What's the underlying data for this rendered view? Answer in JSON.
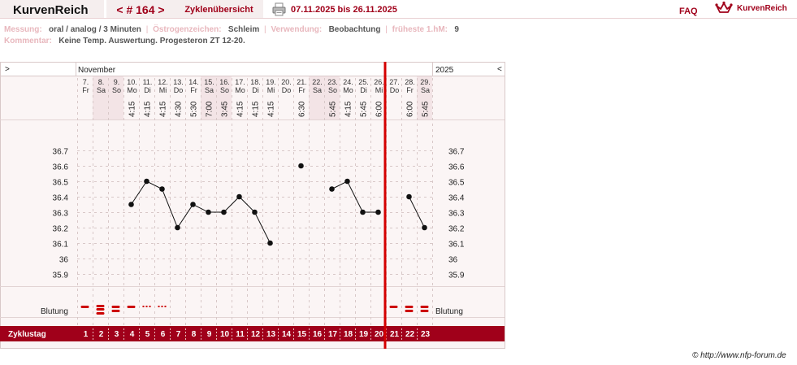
{
  "app": {
    "title": "KurvenReich",
    "cycle_nav": "< # 164 >",
    "overview_label": "Zyklenübersicht",
    "date_range": "07.11.2025 bis 26.11.2025",
    "faq_label": "FAQ",
    "brand_name": "KurvenReich",
    "copyright": "© http://www.nfp-forum.de"
  },
  "info": {
    "measurement_label": "Messung:",
    "measurement_value": "oral / analog / 3 Minuten",
    "estrogen_label": "Östrogenzeichen:",
    "estrogen_value": "Schleim",
    "usage_label": "Verwendung:",
    "usage_value": "Beobachtung",
    "earliest_label": "früheste 1.hM:",
    "earliest_value": "9",
    "comment_label": "Kommentar:",
    "comment_value": "Keine Temp. Auswertung. Progesteron ZT 12-20."
  },
  "chart_header": {
    "prev": ">",
    "next": "<",
    "month": "November",
    "year": "2025",
    "bleeding_label": "Blutung",
    "cycle_label": "Zyklustag"
  },
  "colors": {
    "accent": "#a0001a",
    "marker": "#cc0000",
    "weekend": "#f3e4e6",
    "panel": "#fbf5f5",
    "grid": "#d8c8c8"
  },
  "days": [
    {
      "date": "7.",
      "wd": "Fr",
      "time": "",
      "temp": null,
      "bleeding": "single",
      "cd": "1",
      "weekend": false
    },
    {
      "date": "8.",
      "wd": "Sa",
      "time": "",
      "temp": null,
      "bleeding": "triple",
      "cd": "2",
      "weekend": true
    },
    {
      "date": "9.",
      "wd": "So",
      "time": "",
      "temp": null,
      "bleeding": "double",
      "cd": "3",
      "weekend": true
    },
    {
      "date": "10.",
      "wd": "Mo",
      "time": "4:15",
      "temp": 36.35,
      "bleeding": "single",
      "cd": "4",
      "weekend": false
    },
    {
      "date": "11.",
      "wd": "Di",
      "time": "4:15",
      "temp": 36.5,
      "bleeding": "dots",
      "cd": "5",
      "weekend": false
    },
    {
      "date": "12.",
      "wd": "Mi",
      "time": "4:15",
      "temp": 36.45,
      "bleeding": "dots",
      "cd": "6",
      "weekend": false
    },
    {
      "date": "13.",
      "wd": "Do",
      "time": "4:30",
      "temp": 36.2,
      "bleeding": "",
      "cd": "7",
      "weekend": false
    },
    {
      "date": "14.",
      "wd": "Fr",
      "time": "5:30",
      "temp": 36.35,
      "bleeding": "",
      "cd": "8",
      "weekend": false
    },
    {
      "date": "15.",
      "wd": "Sa",
      "time": "7:00",
      "temp": 36.3,
      "bleeding": "",
      "cd": "9",
      "weekend": true
    },
    {
      "date": "16.",
      "wd": "So",
      "time": "3:45",
      "temp": 36.3,
      "bleeding": "",
      "cd": "10",
      "weekend": true
    },
    {
      "date": "17.",
      "wd": "Mo",
      "time": "4:15",
      "temp": 36.4,
      "bleeding": "",
      "cd": "11",
      "weekend": false
    },
    {
      "date": "18.",
      "wd": "Di",
      "time": "4:15",
      "temp": 36.3,
      "bleeding": "",
      "cd": "12",
      "weekend": false
    },
    {
      "date": "19.",
      "wd": "Mi",
      "time": "4:15",
      "temp": 36.1,
      "bleeding": "",
      "cd": "13",
      "weekend": false
    },
    {
      "date": "20.",
      "wd": "Do",
      "time": "",
      "temp": null,
      "bleeding": "",
      "cd": "14",
      "weekend": false
    },
    {
      "date": "21.",
      "wd": "Fr",
      "time": "6:30",
      "temp": 36.6,
      "bleeding": "",
      "cd": "15",
      "weekend": false
    },
    {
      "date": "22.",
      "wd": "Sa",
      "time": "",
      "temp": null,
      "bleeding": "",
      "cd": "16",
      "weekend": true
    },
    {
      "date": "23.",
      "wd": "So",
      "time": "5:45",
      "temp": 36.45,
      "bleeding": "",
      "cd": "17",
      "weekend": true
    },
    {
      "date": "24.",
      "wd": "Mo",
      "time": "4:15",
      "temp": 36.5,
      "bleeding": "",
      "cd": "18",
      "weekend": false
    },
    {
      "date": "25.",
      "wd": "Di",
      "time": "5:45",
      "temp": 36.3,
      "bleeding": "",
      "cd": "19",
      "weekend": false
    },
    {
      "date": "26.",
      "wd": "Mi",
      "time": "6:00",
      "temp": 36.3,
      "bleeding": "",
      "cd": "20",
      "weekend": false
    },
    {
      "date": "27.",
      "wd": "Do",
      "time": "",
      "temp": null,
      "bleeding": "single",
      "cd": "21",
      "weekend": false
    },
    {
      "date": "28.",
      "wd": "Fr",
      "time": "6:00",
      "temp": 36.4,
      "bleeding": "double",
      "cd": "22",
      "weekend": false
    },
    {
      "date": "29.",
      "wd": "Sa",
      "time": "5:45",
      "temp": 36.2,
      "bleeding": "double",
      "cd": "23",
      "weekend": true
    }
  ],
  "chart_data": {
    "type": "line",
    "title": "",
    "xlabel": "",
    "ylabel": "",
    "y_ticks": [
      "36.7",
      "36.6",
      "36.5",
      "36.4",
      "36.3",
      "36.2",
      "36.1",
      "36",
      "35.9"
    ],
    "ylim": [
      35.9,
      36.7
    ],
    "categories": [
      "7.",
      "8.",
      "9.",
      "10.",
      "11.",
      "12.",
      "13.",
      "14.",
      "15.",
      "16.",
      "17.",
      "18.",
      "19.",
      "20.",
      "21.",
      "22.",
      "23.",
      "24.",
      "25.",
      "26.",
      "27.",
      "28.",
      "29."
    ],
    "series": [
      {
        "values": [
          null,
          null,
          null,
          36.35,
          36.5,
          36.45,
          36.2,
          36.35,
          36.3,
          36.3,
          36.4,
          36.3,
          36.1,
          null,
          36.6,
          null,
          36.45,
          36.5,
          36.3,
          36.3,
          null,
          36.4,
          36.2
        ]
      }
    ],
    "lines_connect": [
      [
        3,
        12
      ],
      [
        16,
        19
      ],
      [
        21,
        22
      ]
    ],
    "cycle_end_after_category": "26.",
    "grid": true
  }
}
